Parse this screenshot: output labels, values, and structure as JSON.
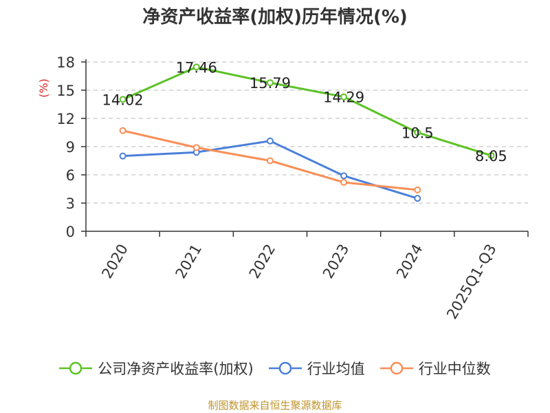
{
  "chart_data": {
    "type": "line",
    "title": "净资产收益率(加权)历年情况(%)",
    "ylabel": "(%)",
    "xlabel": "",
    "categories": [
      "2020",
      "2021",
      "2022",
      "2023",
      "2024",
      "2025Q1-Q3"
    ],
    "ylim": [
      0,
      18
    ],
    "yticks": [
      0,
      3,
      6,
      9,
      12,
      15,
      18
    ],
    "grid": true,
    "legend_position": "bottom",
    "series": [
      {
        "name": "公司净资产收益率(加权)",
        "color": "#5bc224",
        "values": [
          14.02,
          17.46,
          15.79,
          14.29,
          10.5,
          8.05
        ],
        "labels": [
          "14.02",
          "17.46",
          "15.79",
          "14.29",
          "10.5",
          "8.05"
        ]
      },
      {
        "name": "行业均值",
        "color": "#4a7fd8",
        "values": [
          8.0,
          8.4,
          9.6,
          5.9,
          3.5,
          null
        ]
      },
      {
        "name": "行业中位数",
        "color": "#f98e56",
        "values": [
          10.7,
          8.9,
          7.5,
          5.2,
          4.4,
          null
        ]
      }
    ]
  },
  "source": "制图数据来自恒生聚源数据库"
}
